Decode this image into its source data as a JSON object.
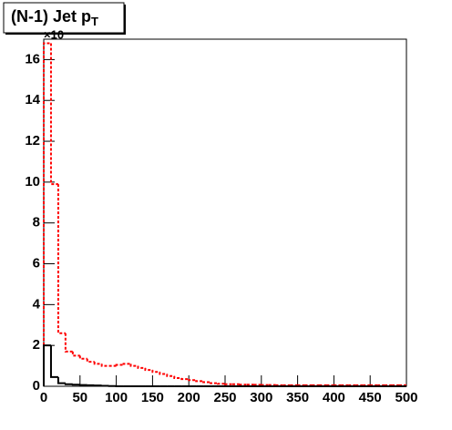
{
  "chart_data": {
    "type": "histogram",
    "title": "(N-1) Jet p",
    "title_subscript": "T",
    "y_multiplier": "×10",
    "bins": [
      0,
      10,
      20,
      30,
      40,
      50,
      60,
      70,
      80,
      90,
      100,
      110,
      120,
      130,
      140,
      150,
      160,
      170,
      180,
      190,
      200,
      210,
      220,
      230,
      240,
      250,
      260,
      270,
      280,
      290,
      300,
      310,
      320,
      330,
      340,
      350,
      360,
      370,
      380,
      390,
      400,
      410,
      420,
      430,
      440,
      450,
      460,
      470,
      480,
      490,
      500
    ],
    "series": [
      {
        "color": "#ff0000",
        "style": "dashed",
        "values": [
          16.8,
          9.9,
          2.6,
          1.7,
          1.5,
          1.35,
          1.2,
          1.1,
          1.0,
          1.0,
          1.05,
          1.1,
          1.0,
          0.9,
          0.8,
          0.7,
          0.6,
          0.5,
          0.4,
          0.35,
          0.3,
          0.25,
          0.2,
          0.15,
          0.12,
          0.1,
          0.1,
          0.08,
          0.08,
          0.07,
          0.06,
          0.06,
          0.05,
          0.05,
          0.05,
          0.05,
          0.05,
          0.05,
          0.05,
          0.05,
          0.05,
          0.05,
          0.05,
          0.05,
          0.05,
          0.05,
          0.05,
          0.05,
          0.05,
          0.05
        ]
      },
      {
        "color": "#000000",
        "style": "solid",
        "values": [
          2.0,
          0.45,
          0.15,
          0.1,
          0.08,
          0.06,
          0.05,
          0.04,
          0.02,
          0.01,
          0,
          0,
          0,
          0,
          0,
          0,
          0,
          0,
          0,
          0,
          0,
          0,
          0,
          0,
          0,
          0,
          0,
          0,
          0,
          0,
          0,
          0,
          0,
          0,
          0,
          0,
          0,
          0,
          0,
          0,
          0,
          0,
          0,
          0,
          0,
          0,
          0,
          0,
          0,
          0
        ]
      }
    ],
    "xlim": [
      0,
      500
    ],
    "xticks": [
      0,
      50,
      100,
      150,
      200,
      250,
      300,
      350,
      400,
      450,
      500
    ],
    "ylim": [
      0,
      17
    ],
    "yticks": [
      0,
      2,
      4,
      6,
      8,
      10,
      12,
      14,
      16
    ]
  }
}
